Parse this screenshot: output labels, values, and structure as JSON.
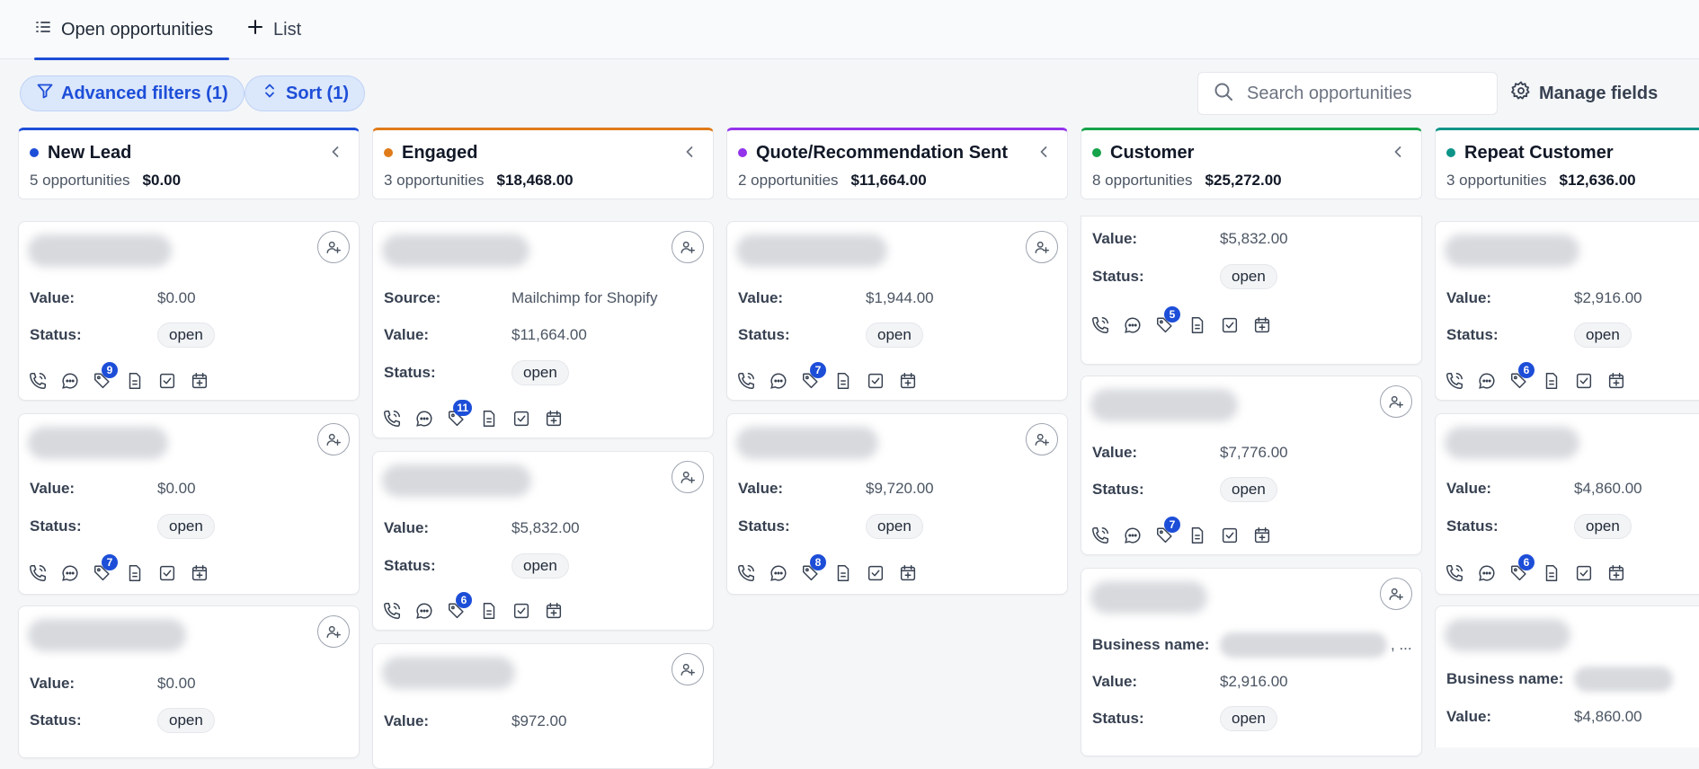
{
  "tabs": [
    {
      "label": "Open opportunities",
      "active": true,
      "icon": "list-icon"
    },
    {
      "label": "List",
      "active": false,
      "icon": "plus-icon"
    }
  ],
  "toolbar": {
    "filters_label": "Advanced filters (1)",
    "sort_label": "Sort (1)",
    "search_placeholder": "Search opportunities",
    "manage_label": "Manage fields"
  },
  "labels": {
    "value": "Value:",
    "status": "Status:",
    "source": "Source:",
    "business": "Business name:"
  },
  "columns": [
    {
      "title": "New Lead",
      "color": "#1d4ed8",
      "count": "5 opportunities",
      "total": "$0.00",
      "cards": [
        {
          "value": "$0.00",
          "status": "open",
          "tasks": "9"
        },
        {
          "value": "$0.00",
          "status": "open",
          "tasks": "7"
        },
        {
          "value": "$0.00",
          "status": "open"
        }
      ]
    },
    {
      "title": "Engaged",
      "color": "#e07b1a",
      "count": "3 opportunities",
      "total": "$18,468.00",
      "cards": [
        {
          "source": "Mailchimp for Shopify",
          "value": "$11,664.00",
          "status": "open",
          "tasks": "11"
        },
        {
          "value": "$5,832.00",
          "status": "open",
          "tasks": "6"
        },
        {
          "value": "$972.00"
        }
      ]
    },
    {
      "title": "Quote/Recommendation Sent",
      "color": "#9333ea",
      "count": "2 opportunities",
      "total": "$11,664.00",
      "cards": [
        {
          "value": "$1,944.00",
          "status": "open",
          "tasks": "7"
        },
        {
          "value": "$9,720.00",
          "status": "open",
          "tasks": "8"
        }
      ]
    },
    {
      "title": "Customer",
      "color": "#16a34a",
      "count": "8 opportunities",
      "total": "$25,272.00",
      "cards": [
        {
          "value": "$5,832.00",
          "status": "open",
          "tasks": "5"
        },
        {
          "value": "$7,776.00",
          "status": "open",
          "tasks": "7"
        },
        {
          "business_suffix": ", ...",
          "value": "$2,916.00",
          "status": "open"
        }
      ]
    },
    {
      "title": "Repeat Customer",
      "color": "#0d9488",
      "count": "3 opportunities",
      "total": "$12,636.00",
      "cards": [
        {
          "value": "$2,916.00",
          "status": "open",
          "tasks": "6"
        },
        {
          "value": "$4,860.00",
          "status": "open",
          "tasks": "6"
        },
        {
          "value": "$4,860.00"
        }
      ]
    }
  ]
}
